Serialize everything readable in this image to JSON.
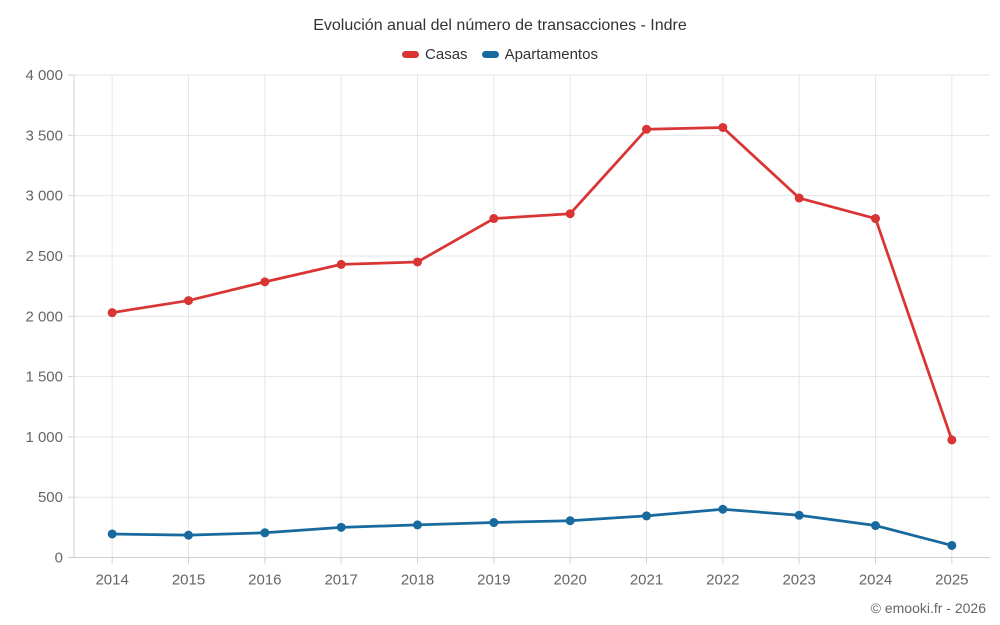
{
  "chart_data": {
    "type": "line",
    "title": "Evolución anual del número de transacciones - Indre",
    "categories": [
      "2014",
      "2015",
      "2016",
      "2017",
      "2018",
      "2019",
      "2020",
      "2021",
      "2022",
      "2023",
      "2024",
      "2025"
    ],
    "series": [
      {
        "name": "Casas",
        "color": "#d93535",
        "values": [
          2030,
          2130,
          2285,
          2430,
          2450,
          2810,
          2850,
          3550,
          3565,
          2980,
          2810,
          975
        ]
      },
      {
        "name": "Apartamentos",
        "color": "#17699e",
        "values": [
          195,
          185,
          205,
          250,
          270,
          290,
          305,
          345,
          400,
          350,
          265,
          100
        ]
      }
    ],
    "ylim": [
      0,
      4000
    ],
    "ytick_step": 500,
    "ytick_labels": [
      "0",
      "500",
      "1 000",
      "1 500",
      "2 000",
      "2 500",
      "3 000",
      "3 500",
      "4 000"
    ],
    "grid": true,
    "legend_position": "top",
    "marker_shape": "circle"
  },
  "footer": {
    "credit": "© emooki.fr - 2026"
  },
  "colors": {
    "grid_line": "#e6e6e6",
    "axis_line": "#d0d0d0",
    "axis_label": "#666666",
    "title_text": "#333333"
  }
}
